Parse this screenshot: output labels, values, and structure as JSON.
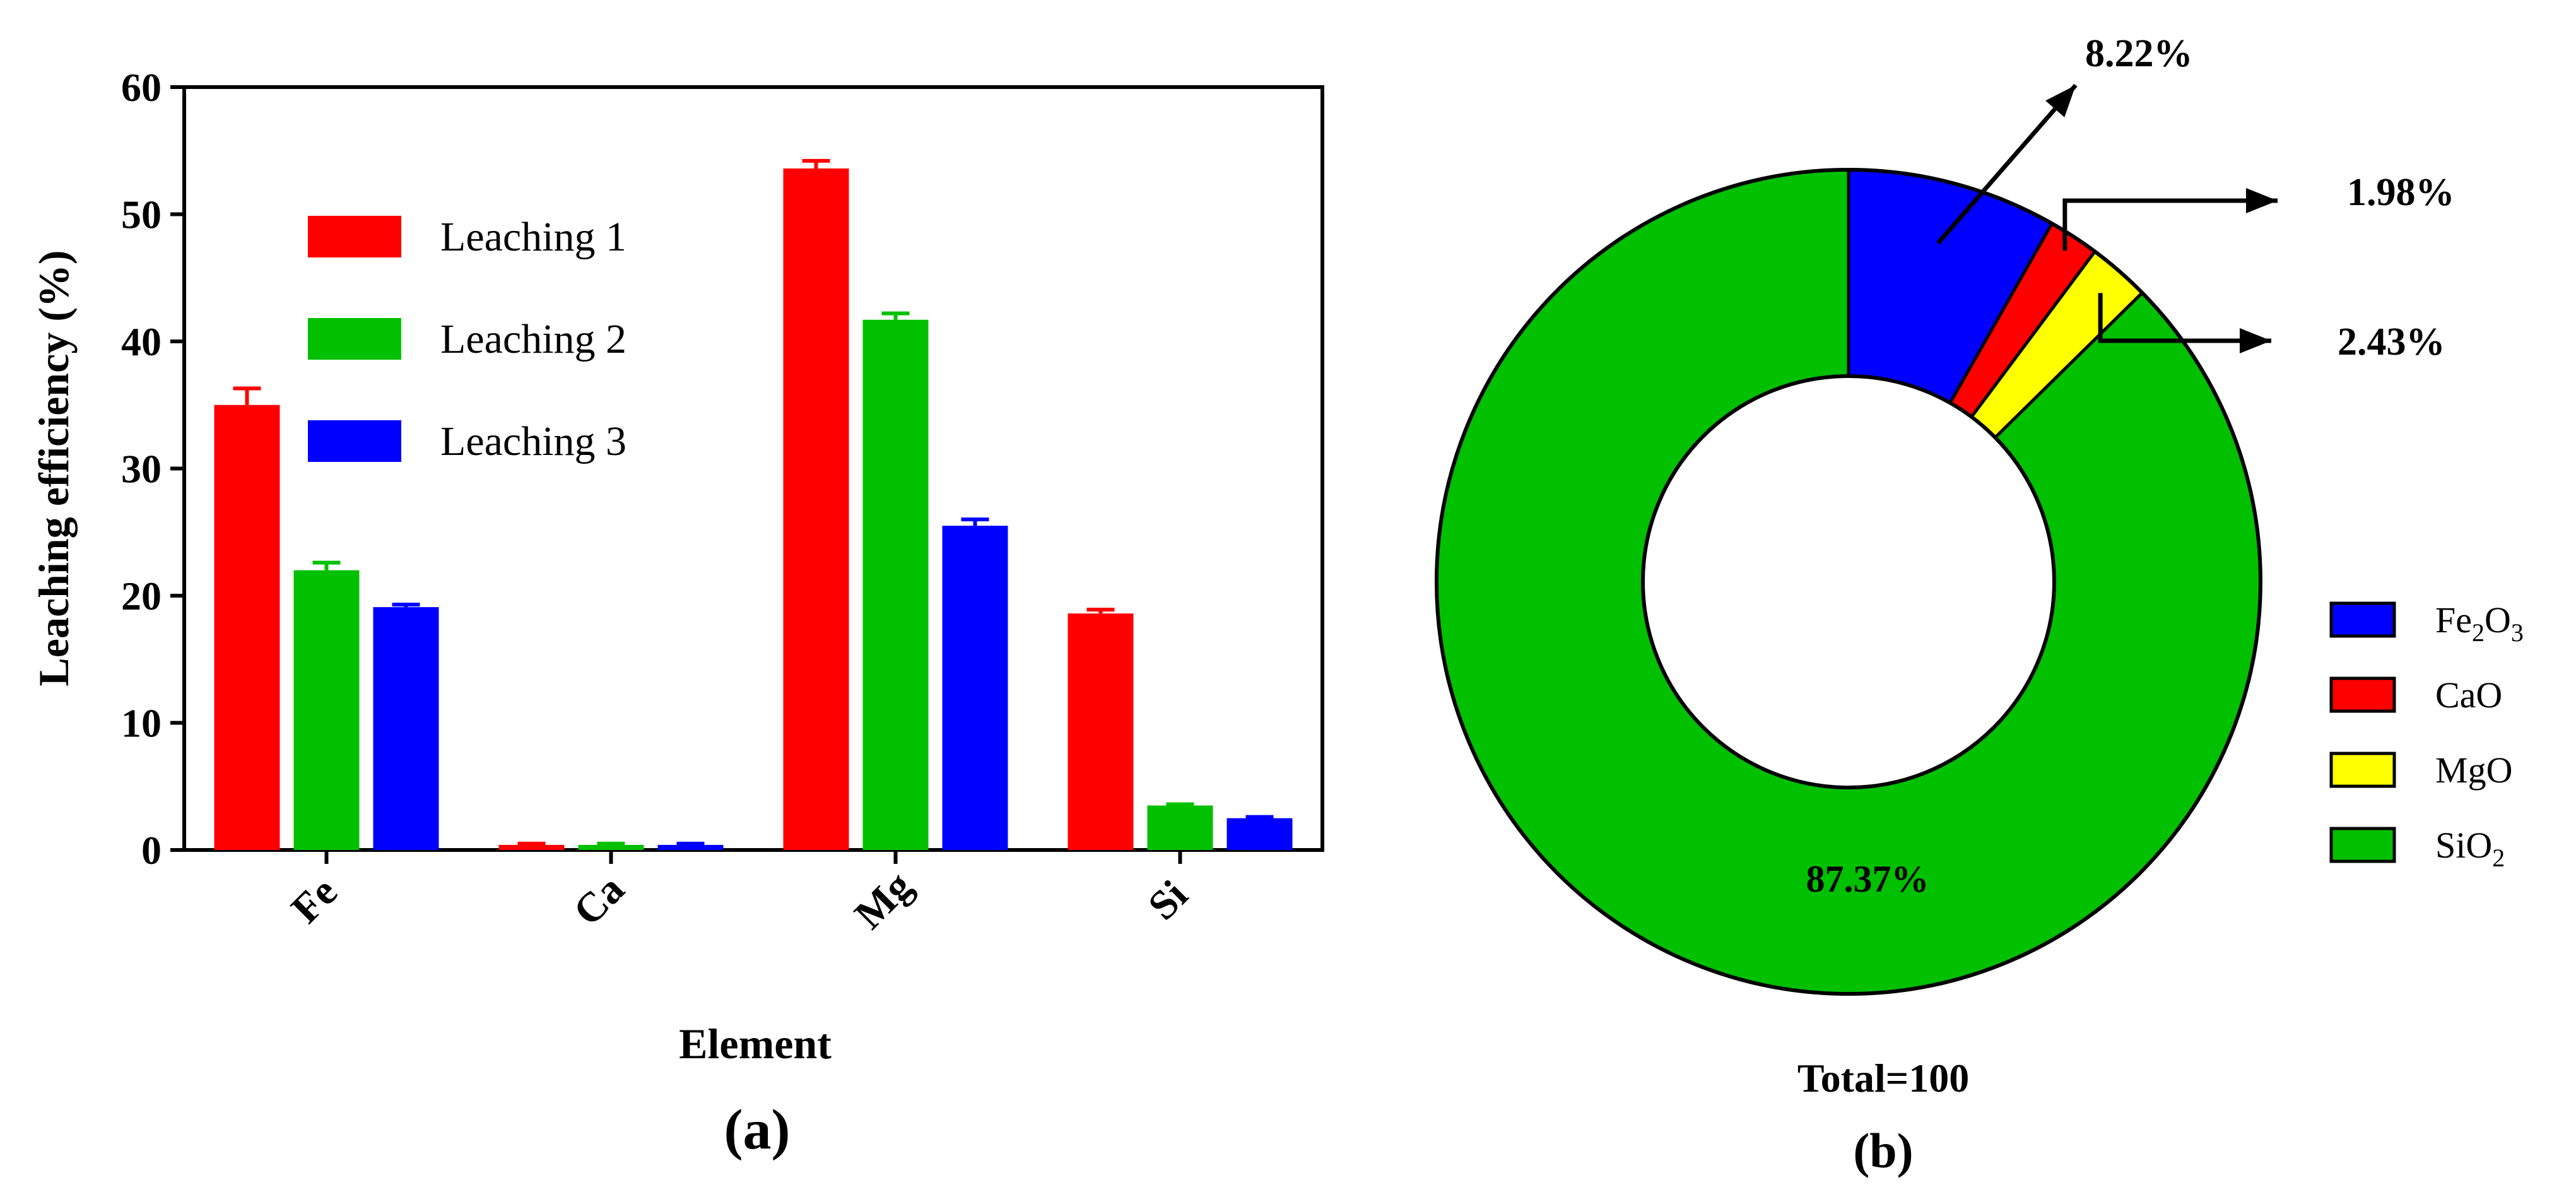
{
  "charts": {
    "bar": {
      "ylabel": "Leaching efficiency (%)",
      "xlabel": "Element",
      "panel_label": "(a)"
    },
    "donut": {
      "total_label": "Total=100",
      "panel_label": "(b)"
    }
  },
  "chart_data": [
    {
      "type": "bar",
      "title": "",
      "xlabel": "Element",
      "ylabel": "Leaching efficiency (%)",
      "categories": [
        "Fe",
        "Ca",
        "Mg",
        "Si"
      ],
      "yticks": [
        0,
        10,
        20,
        30,
        40,
        50,
        60
      ],
      "ylim": [
        0,
        60
      ],
      "grid": false,
      "legend_position": "top-left",
      "series": [
        {
          "name": "Leaching 1",
          "color": "#ff0000",
          "values": [
            35.0,
            0.4,
            53.6,
            18.6
          ],
          "errors": [
            1.3,
            0.1,
            0.6,
            0.3
          ]
        },
        {
          "name": "Leaching 2",
          "color": "#00c000",
          "values": [
            22.0,
            0.4,
            41.7,
            3.5
          ],
          "errors": [
            0.6,
            0.1,
            0.5,
            0.1
          ]
        },
        {
          "name": "Leaching 3",
          "color": "#0000ff",
          "values": [
            19.1,
            0.4,
            25.5,
            2.5
          ],
          "errors": [
            0.2,
            0.1,
            0.5,
            0.1
          ]
        }
      ]
    },
    {
      "type": "pie",
      "title": "",
      "donut": true,
      "total_label": "Total=100",
      "legend_position": "right",
      "slices": [
        {
          "name": "Fe2O3",
          "formula_base": "Fe",
          "formula_sub1": "2",
          "formula_mid": "O",
          "formula_sub2": "3",
          "value": 8.22,
          "label": "8.22%",
          "color": "#0000ff"
        },
        {
          "name": "CaO",
          "formula_base": "CaO",
          "formula_sub1": "",
          "formula_mid": "",
          "formula_sub2": "",
          "value": 1.98,
          "label": "1.98%",
          "color": "#ff0000"
        },
        {
          "name": "MgO",
          "formula_base": "MgO",
          "formula_sub1": "",
          "formula_mid": "",
          "formula_sub2": "",
          "value": 2.43,
          "label": "2.43%",
          "color": "#ffff00"
        },
        {
          "name": "SiO2",
          "formula_base": "SiO",
          "formula_sub1": "2",
          "formula_mid": "",
          "formula_sub2": "",
          "value": 87.37,
          "label": "87.37%",
          "color": "#00c000"
        }
      ]
    }
  ]
}
